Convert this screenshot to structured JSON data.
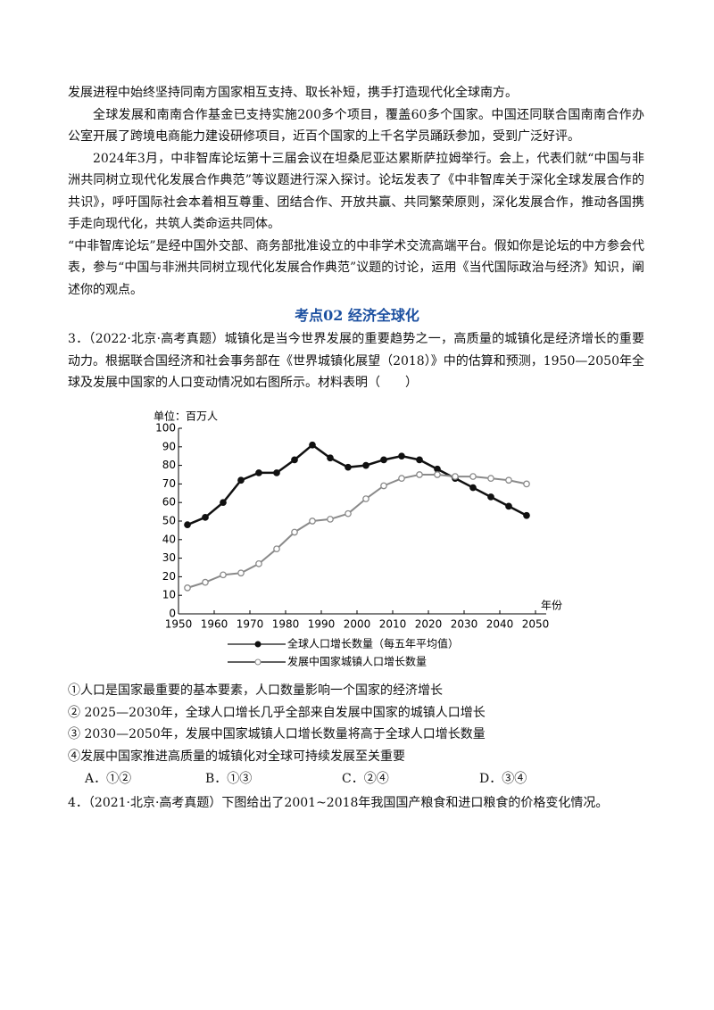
{
  "document": {
    "paragraphs": [
      "发展进程中始终坚持同南方国家相互支持、取长补短，携手打造现代化全球南方。",
      "全球发展和南南合作基金已支持实施200多个项目，覆盖60多个国家。中国还同联合国南南合作办公室开展了跨境电商能力建设研修项目，近百个国家的上千名学员踊跃参加，受到广泛好评。",
      "2024年3月，中非智库论坛第十三届会议在坦桑尼亚达累斯萨拉姆举行。会上，代表们就“中国与非洲共同树立现代化发展合作典范”等议题进行深入探讨。论坛发表了《中非智库关于深化全球发展合作的共识》，呼吁国际社会本着相互尊重、团结合作、开放共赢、共同繁荣原则，深化发展合作，推动各国携手走向现代化，共筑人类命运共同体。",
      "“中非智库论坛”是经中国外交部、商务部批准设立的中非学术交流高端平台。假如你是论坛的中方参会代表，参与“中国与非洲共同树立现代化发展合作典范”议题的讨论，运用《当代国际政治与经济》知识，阐述你的观点。"
    ],
    "heading": "考点02  经济全球化",
    "q3_stem": "3．（2022·北京·高考真题）城镇化是当今世界发展的重要趋势之一，高质量的城镇化是经济增长的重要动力。根据联合国经济和社会事务部在《世界城镇化展望（2018）》中的估算和预测，1950—2050年全球及发展中国家的人口变动情况如右图所示。材料表明（　　）",
    "statements": [
      "①人口是国家最重要的基本要素，人口数量影响一个国家的经济增长",
      "② 2025—2030年，全球人口增长几乎全部来自发展中国家的城镇人口增长",
      "③ 2030—2050年，发展中国家城镇人口增长数量将高于全球人口增长数量",
      "④发展中国家推进高质量的城镇化对全球可持续发展至关重要"
    ],
    "options": [
      "A．①②",
      "B．①③",
      "C．②④",
      "D．③④"
    ],
    "q4_stem": "4．（2021·北京·高考真题）下图给出了2001~2018年我国国产粮食和进口粮食的价格变化情况。"
  },
  "chart_data": {
    "type": "line",
    "y_label": "单位：百万人",
    "x_label": "年份",
    "x": [
      1952.5,
      1957.5,
      1962.5,
      1967.5,
      1972.5,
      1977.5,
      1982.5,
      1987.5,
      1992.5,
      1997.5,
      2002.5,
      2007.5,
      2012.5,
      2017.5,
      2022.5,
      2027.5,
      2032.5,
      2037.5,
      2042.5,
      2047.5
    ],
    "series": [
      {
        "name": "全球人口增长数量（每五年平均值）",
        "color": "#111111",
        "marker": "filled",
        "values": [
          48,
          52,
          60,
          72,
          76,
          76,
          83,
          91,
          84,
          79,
          80,
          83,
          85,
          83,
          78,
          73,
          68,
          63,
          58,
          53
        ]
      },
      {
        "name": "发展中国家城镇人口增长数量",
        "color": "#8a8a8a",
        "marker": "open",
        "values": [
          14,
          17,
          21,
          22,
          27,
          35,
          44,
          50,
          51,
          54,
          62,
          69,
          73,
          75,
          75,
          74,
          74,
          73,
          72,
          70
        ]
      }
    ],
    "xlim": [
      1950,
      2050
    ],
    "ylim": [
      0,
      100
    ],
    "xticks": [
      1950,
      1960,
      1970,
      1980,
      1990,
      2000,
      2010,
      2020,
      2030,
      2040,
      2050
    ],
    "yticks": [
      0,
      10,
      20,
      30,
      40,
      50,
      60,
      70,
      80,
      90,
      100
    ]
  }
}
